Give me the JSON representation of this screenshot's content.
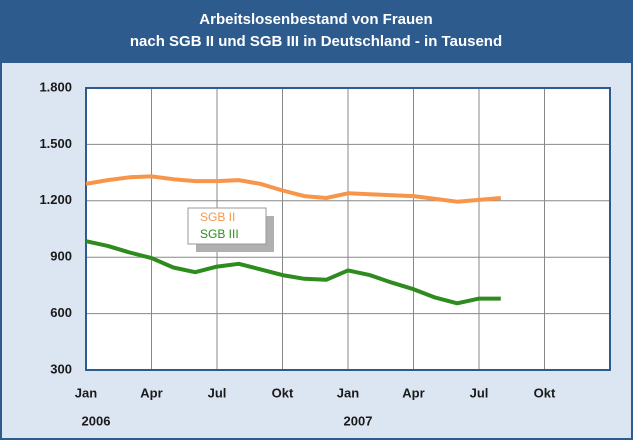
{
  "chart_data": {
    "type": "line",
    "title": [
      "Arbeitslosenbestand von Frauen",
      "nach SGB II und SGB III in Deutschland - in Tausend"
    ],
    "categories": [
      "Jan",
      null,
      null,
      "Apr",
      null,
      null,
      "Jul",
      null,
      null,
      "Okt",
      null,
      null,
      "Jan",
      null,
      null,
      "Apr",
      null,
      null,
      "Jul",
      null,
      null,
      "Okt",
      null,
      null
    ],
    "years": [
      "2006",
      "2007"
    ],
    "series": [
      {
        "name": "SGB II",
        "color": "#f7954a",
        "values": [
          1290,
          1310,
          1325,
          1330,
          1315,
          1305,
          1305,
          1310,
          1290,
          1255,
          1225,
          1215,
          1240,
          1235,
          1230,
          1225,
          1210,
          1195,
          1205,
          1215,
          null,
          null,
          null,
          null
        ]
      },
      {
        "name": "SGB III",
        "color": "#2e8b1e",
        "values": [
          985,
          960,
          925,
          895,
          845,
          820,
          850,
          865,
          835,
          805,
          785,
          780,
          830,
          805,
          765,
          730,
          685,
          655,
          680,
          680,
          null,
          null,
          null,
          null
        ]
      }
    ],
    "ylim": [
      300,
      1800
    ],
    "yticks": [
      300,
      600,
      900,
      {
        "value": 1200,
        "label": "1.200"
      },
      {
        "value": 1500,
        "label": "1.500"
      },
      {
        "value": 1800,
        "label": "1.800"
      }
    ],
    "grid": true,
    "legend": "inside"
  }
}
